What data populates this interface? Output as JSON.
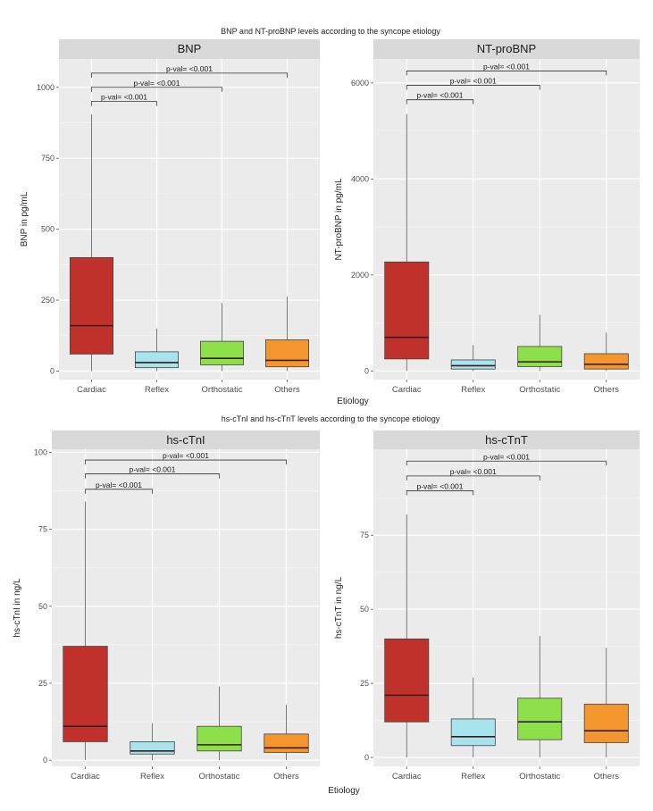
{
  "figure": {
    "x_axis_label": "Etiology",
    "categories": [
      "Cardiac",
      "Reflex",
      "Orthostatic",
      "Others"
    ],
    "colors": {
      "Cardiac": "#c1312c",
      "Reflex": "#a8e4ee",
      "Orthostatic": "#8ee04a",
      "Others": "#f4962e",
      "panel_bg": "#ebebeb",
      "strip_bg": "#d9d9d9",
      "grid": "#ffffff"
    }
  },
  "chart_data": [
    {
      "type": "box",
      "group_title": "BNP and NT-proBNP levels according to the syncope etiology",
      "title": "BNP",
      "ylabel": "BNP in pg/mL",
      "xlabel": "Etiology",
      "categories": [
        "Cardiac",
        "Reflex",
        "Orthostatic",
        "Others"
      ],
      "ylim": [
        -30,
        1100
      ],
      "yticks": [
        0,
        250,
        500,
        750,
        1000
      ],
      "ytick_labels": [
        "0",
        "250",
        "500",
        "750",
        "1000"
      ],
      "boxes": [
        {
          "category": "Cardiac",
          "whisker_low": 0,
          "q1": 60,
          "median": 160,
          "q3": 400,
          "whisker_high": 905
        },
        {
          "category": "Reflex",
          "whisker_low": 0,
          "q1": 12,
          "median": 30,
          "q3": 68,
          "whisker_high": 150
        },
        {
          "category": "Orthostatic",
          "whisker_low": 0,
          "q1": 22,
          "median": 45,
          "q3": 105,
          "whisker_high": 240
        },
        {
          "category": "Others",
          "whisker_low": 0,
          "q1": 15,
          "median": 38,
          "q3": 110,
          "whisker_high": 262
        }
      ],
      "comparisons": [
        {
          "from": "Cardiac",
          "to": "Reflex",
          "label": "p-val= <0.001",
          "y": 950
        },
        {
          "from": "Cardiac",
          "to": "Orthostatic",
          "label": "p-val= <0.001",
          "y": 1000
        },
        {
          "from": "Cardiac",
          "to": "Others",
          "label": "p-val= <0.001",
          "y": 1050
        }
      ]
    },
    {
      "type": "box",
      "title": "NT-proBNP",
      "ylabel": "NT-proBNP in pg/mL",
      "xlabel": "Etiology",
      "categories": [
        "Cardiac",
        "Reflex",
        "Orthostatic",
        "Others"
      ],
      "ylim": [
        -180,
        6500
      ],
      "yticks": [
        0,
        2000,
        4000,
        6000
      ],
      "ytick_labels": [
        "0",
        "2000",
        "4000",
        "6000"
      ],
      "boxes": [
        {
          "category": "Cardiac",
          "whisker_low": 0,
          "q1": 250,
          "median": 700,
          "q3": 2270,
          "whisker_high": 5350
        },
        {
          "category": "Reflex",
          "whisker_low": 0,
          "q1": 40,
          "median": 110,
          "q3": 230,
          "whisker_high": 540
        },
        {
          "category": "Orthostatic",
          "whisker_low": 0,
          "q1": 90,
          "median": 190,
          "q3": 510,
          "whisker_high": 1170
        },
        {
          "category": "Others",
          "whisker_low": 0,
          "q1": 40,
          "median": 140,
          "q3": 360,
          "whisker_high": 800
        }
      ],
      "comparisons": [
        {
          "from": "Cardiac",
          "to": "Reflex",
          "label": "p-val= <0.001",
          "y": 5650
        },
        {
          "from": "Cardiac",
          "to": "Orthostatic",
          "label": "p-val= <0.001",
          "y": 5950
        },
        {
          "from": "Cardiac",
          "to": "Others",
          "label": "p-val= <0.001",
          "y": 6250
        }
      ]
    },
    {
      "type": "box",
      "group_title": "hs-cTnI and hs-cTnT levels according to the syncope etiology",
      "title": "hs-cTnI",
      "ylabel": "hs-cTnI in ng/L",
      "xlabel": "",
      "categories": [
        "Cardiac",
        "Reflex",
        "Orthostatic",
        "Others"
      ],
      "ylim": [
        -2,
        101
      ],
      "yticks": [
        0,
        25,
        50,
        75,
        100
      ],
      "ytick_labels": [
        "0",
        "25",
        "50",
        "75",
        "100"
      ],
      "boxes": [
        {
          "category": "Cardiac",
          "whisker_low": 0,
          "q1": 6,
          "median": 11,
          "q3": 37,
          "whisker_high": 84
        },
        {
          "category": "Reflex",
          "whisker_low": 0,
          "q1": 2,
          "median": 3,
          "q3": 6,
          "whisker_high": 12
        },
        {
          "category": "Orthostatic",
          "whisker_low": 0,
          "q1": 3,
          "median": 5,
          "q3": 11,
          "whisker_high": 24
        },
        {
          "category": "Others",
          "whisker_low": 0,
          "q1": 2.5,
          "median": 4,
          "q3": 8.5,
          "whisker_high": 18
        }
      ],
      "comparisons": [
        {
          "from": "Cardiac",
          "to": "Reflex",
          "label": "p-val= <0.001",
          "y": 88
        },
        {
          "from": "Cardiac",
          "to": "Orthostatic",
          "label": "p-val= <0.001",
          "y": 93
        },
        {
          "from": "Cardiac",
          "to": "Others",
          "label": "p-val= <0.001",
          "y": 97.5
        }
      ]
    },
    {
      "type": "box",
      "title": "hs-cTnT",
      "ylabel": "hs-cTnT in ng/L",
      "xlabel": "Etiology",
      "categories": [
        "Cardiac",
        "Reflex",
        "Orthostatic",
        "Others"
      ],
      "ylim": [
        -3,
        104
      ],
      "yticks": [
        0,
        25,
        50,
        75
      ],
      "ytick_labels": [
        "0",
        "25",
        "50",
        "75"
      ],
      "boxes": [
        {
          "category": "Cardiac",
          "whisker_low": 0,
          "q1": 12,
          "median": 21,
          "q3": 40,
          "whisker_high": 82
        },
        {
          "category": "Reflex",
          "whisker_low": 0,
          "q1": 4,
          "median": 7,
          "q3": 13,
          "whisker_high": 27
        },
        {
          "category": "Orthostatic",
          "whisker_low": 0,
          "q1": 6,
          "median": 12,
          "q3": 20,
          "whisker_high": 41
        },
        {
          "category": "Others",
          "whisker_low": 0,
          "q1": 5,
          "median": 9,
          "q3": 18,
          "whisker_high": 37
        }
      ],
      "comparisons": [
        {
          "from": "Cardiac",
          "to": "Reflex",
          "label": "p-val= <0.001",
          "y": 90
        },
        {
          "from": "Cardiac",
          "to": "Orthostatic",
          "label": "p-val= <0.001",
          "y": 95
        },
        {
          "from": "Cardiac",
          "to": "Others",
          "label": "p-val= <0.001",
          "y": 100
        }
      ]
    }
  ]
}
